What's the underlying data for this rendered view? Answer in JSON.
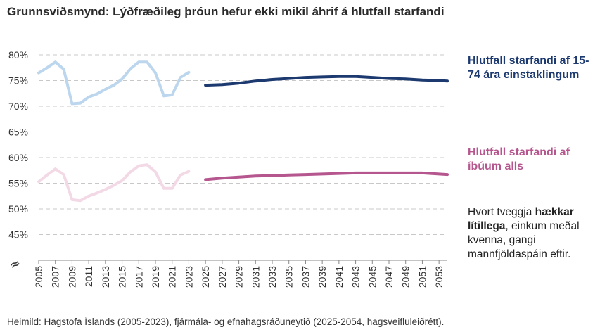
{
  "title": "Grunnsviðsmynd: Lýðfræðileg þróun hefur ekki mikil áhrif á hlutfall starfandi",
  "legend": {
    "series1": "Hlutfall starfandi af 15-74 ára einstaklingum",
    "series2": "Hlutfall starfandi af íbúum alls"
  },
  "note": {
    "before": "Hvort tveggja ",
    "bold": "hækkar lítillega",
    "after": ", einkum meðal kvenna, gangi mannfjöldaspáin eftir."
  },
  "axis_break_symbol": "≈",
  "source": "Heimild: Hagstofa Íslands (2005-2023), fjármála- og efnahagsráðuneytið (2025-2054, hagsveifluleiðrétt).",
  "colors": {
    "employed_1574_history": "#bcd6ee",
    "employed_1574_forecast": "#1d3a70",
    "employed_all_history": "#f3d9e6",
    "employed_all_forecast": "#b5568e",
    "grid": "#c8c8c8"
  },
  "chart_data": {
    "type": "line",
    "xlim": [
      2005,
      2054
    ],
    "ylim": [
      0.4,
      0.8
    ],
    "y_ticks": [
      0.45,
      0.5,
      0.55,
      0.6,
      0.65,
      0.7,
      0.75,
      0.8
    ],
    "y_tick_labels": [
      "45%",
      "50%",
      "55%",
      "60%",
      "65%",
      "70%",
      "75%",
      "80%"
    ],
    "x_ticks": [
      2005,
      2007,
      2009,
      2011,
      2013,
      2015,
      2017,
      2019,
      2021,
      2023,
      2025,
      2027,
      2029,
      2031,
      2033,
      2035,
      2037,
      2039,
      2041,
      2043,
      2045,
      2047,
      2049,
      2051,
      2053
    ],
    "grid": "horizontal dashed",
    "series": [
      {
        "key": "employed_1574_history",
        "x": [
          2005,
          2006,
          2007,
          2008,
          2009,
          2010,
          2011,
          2012,
          2013,
          2014,
          2015,
          2016,
          2017,
          2018,
          2019,
          2020,
          2021,
          2022,
          2023
        ],
        "values": [
          0.765,
          0.775,
          0.786,
          0.772,
          0.705,
          0.706,
          0.718,
          0.724,
          0.733,
          0.741,
          0.753,
          0.773,
          0.786,
          0.786,
          0.765,
          0.72,
          0.722,
          0.756,
          0.766
        ]
      },
      {
        "key": "employed_1574_forecast",
        "x": [
          2025,
          2027,
          2029,
          2031,
          2033,
          2035,
          2037,
          2039,
          2041,
          2043,
          2045,
          2047,
          2049,
          2051,
          2053,
          2054
        ],
        "values": [
          0.741,
          0.742,
          0.745,
          0.749,
          0.752,
          0.754,
          0.756,
          0.757,
          0.758,
          0.758,
          0.756,
          0.754,
          0.753,
          0.751,
          0.75,
          0.749
        ]
      },
      {
        "key": "employed_all_history",
        "x": [
          2005,
          2006,
          2007,
          2008,
          2009,
          2010,
          2011,
          2012,
          2013,
          2014,
          2015,
          2016,
          2017,
          2018,
          2019,
          2020,
          2021,
          2022,
          2023
        ],
        "values": [
          0.553,
          0.566,
          0.578,
          0.567,
          0.518,
          0.516,
          0.525,
          0.531,
          0.538,
          0.546,
          0.555,
          0.572,
          0.584,
          0.586,
          0.572,
          0.54,
          0.54,
          0.566,
          0.573
        ]
      },
      {
        "key": "employed_all_forecast",
        "x": [
          2025,
          2027,
          2029,
          2031,
          2033,
          2035,
          2037,
          2039,
          2041,
          2043,
          2045,
          2047,
          2049,
          2051,
          2053,
          2054
        ],
        "values": [
          0.557,
          0.56,
          0.562,
          0.564,
          0.565,
          0.566,
          0.567,
          0.568,
          0.569,
          0.57,
          0.57,
          0.57,
          0.57,
          0.57,
          0.568,
          0.567
        ]
      }
    ]
  }
}
